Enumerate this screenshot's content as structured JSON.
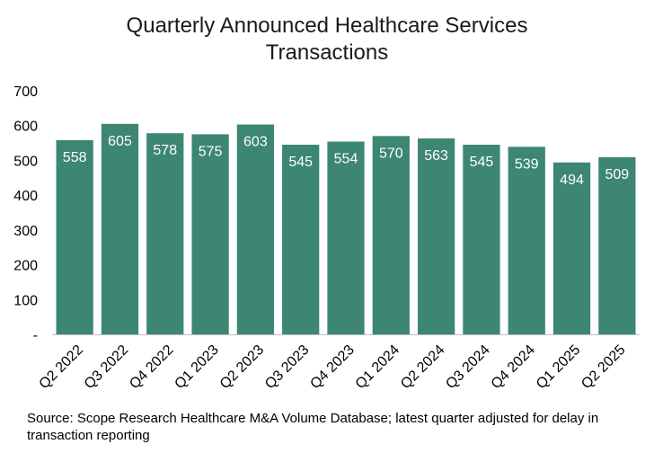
{
  "chart_data": {
    "type": "bar",
    "title_lines": [
      "Quarterly Announced Healthcare Services",
      "Transactions"
    ],
    "categories": [
      "Q2 2022",
      "Q3 2022",
      "Q4 2022",
      "Q1 2023",
      "Q2 2023",
      "Q3 2023",
      "Q4 2023",
      "Q1 2024",
      "Q2 2024",
      "Q3 2024",
      "Q4 2024",
      "Q1 2025",
      "Q2 2025"
    ],
    "values": [
      558,
      605,
      578,
      575,
      603,
      545,
      554,
      570,
      563,
      545,
      539,
      494,
      509
    ],
    "data_labels": [
      "558",
      "605",
      "578",
      "575",
      "603",
      "545",
      "554",
      "570",
      "563",
      "545",
      "539",
      "494",
      "509"
    ],
    "xlabel": "",
    "ylabel": "",
    "ylim": [
      0,
      700
    ],
    "y_ticks": [
      0,
      100,
      200,
      300,
      400,
      500,
      600,
      700
    ],
    "y_tick_labels": [
      "-",
      "100",
      "200",
      "300",
      "400",
      "500",
      "600",
      "700"
    ],
    "grid": false,
    "legend": "none",
    "bar_color": "#3d8674",
    "label_color": "#ffffff"
  },
  "source_note": "Source: Scope Research Healthcare M&A Volume Database; latest quarter adjusted for delay in transaction reporting"
}
